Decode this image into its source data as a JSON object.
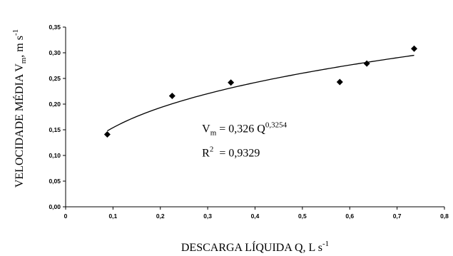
{
  "chart_data": {
    "type": "scatter",
    "xlabel": "DESCARGA LÍQUIDA Q, L s",
    "xlabel_sup": "-1",
    "ylabel": "VELOCIDADE MÉDIA V",
    "ylabel_sub": "m",
    "ylabel_tail": ", m s",
    "ylabel_sup": "-1",
    "xlim": [
      0,
      0.8
    ],
    "ylim": [
      0,
      0.35
    ],
    "x_ticks": [
      "0",
      "0,1",
      "0,2",
      "0,3",
      "0,4",
      "0,5",
      "0,6",
      "0,7",
      "0,8"
    ],
    "y_ticks": [
      "0,00",
      "0,05",
      "0,10",
      "0,15",
      "0,20",
      "0,25",
      "0,30",
      "0,35"
    ],
    "grid": false,
    "series": [
      {
        "marker": "diamond",
        "color": "#000000",
        "points": [
          {
            "x": 0.088,
            "y": 0.141
          },
          {
            "x": 0.225,
            "y": 0.216
          },
          {
            "x": 0.349,
            "y": 0.242
          },
          {
            "x": 0.579,
            "y": 0.243
          },
          {
            "x": 0.636,
            "y": 0.279
          },
          {
            "x": 0.736,
            "y": 0.308
          }
        ]
      }
    ],
    "trendline": {
      "type": "power",
      "coefficient": 0.326,
      "exponent": 0.3254,
      "x_range": [
        0.088,
        0.736
      ]
    },
    "annotations": {
      "equation": {
        "v": "V",
        "v_sub": "m",
        "rhs": " = 0,326 Q",
        "exp": "0,3254"
      },
      "r2": {
        "r": "R",
        "r_sup": "2",
        "rhs": "  = 0,9329"
      }
    }
  }
}
